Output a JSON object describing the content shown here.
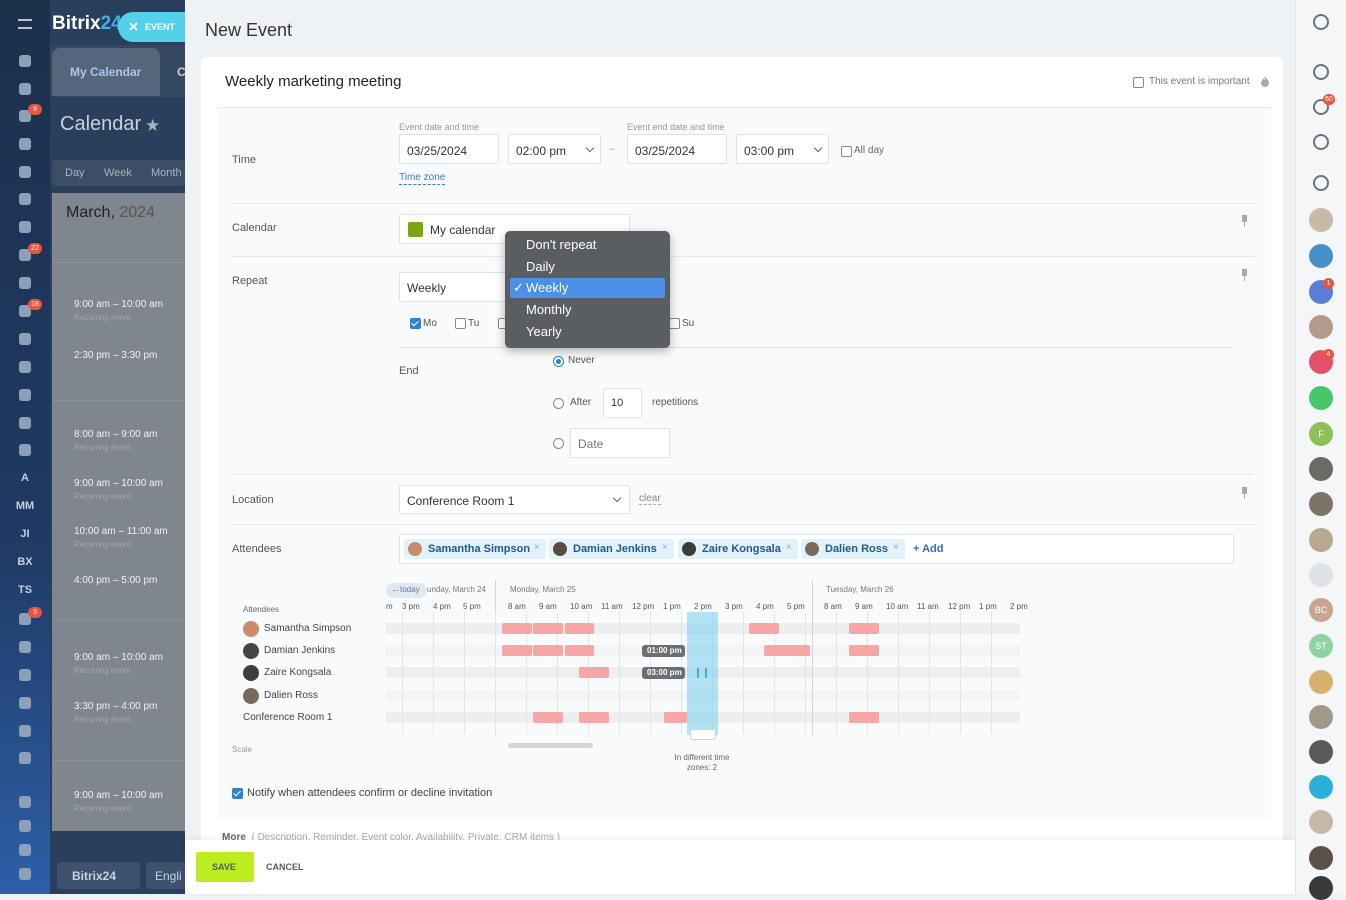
{
  "app": {
    "logo": "Bitrix",
    "logo_suffix": "24",
    "event_button": "EVENT"
  },
  "left_nav": {
    "badges": [
      "9",
      "22",
      "18",
      "3"
    ],
    "text_items": [
      "A",
      "MM",
      "JI",
      "BX",
      "TS"
    ],
    "footer_logo": "Bitrix24",
    "language": "Engli"
  },
  "background": {
    "tabs": [
      "My Calendar",
      "C"
    ],
    "title": "Calendar",
    "views": [
      "Day",
      "Week",
      "Month"
    ],
    "month": "March,",
    "year": "2024",
    "events": [
      {
        "time": "9:00 am – 10:00 am",
        "note": "Recurring event"
      },
      {
        "time": "2:30 pm – 3:30 pm"
      },
      {
        "time": "8:00 am – 9:00 am",
        "note": "Recurring event"
      },
      {
        "time": "9:00 am – 10:00 am",
        "note": "Recurring event"
      },
      {
        "time": "10:00 am – 11:00 am",
        "note": "Recurring event"
      },
      {
        "time": "4:00 pm – 5:00 pm"
      },
      {
        "time": "9:00 am – 10:00 am",
        "note": "Recurring event"
      },
      {
        "time": "3:30 pm – 4:00 pm",
        "note": "Recurring event"
      },
      {
        "time": "9:00 am – 10:00 am",
        "note": "Recurring event"
      }
    ]
  },
  "right_bar": {
    "badges": [
      "60",
      "1",
      "4"
    ],
    "initials": [
      "F",
      "BC",
      "ST"
    ]
  },
  "form": {
    "page_title": "New Event",
    "event_name": "Weekly marketing meeting",
    "important": "This event is important",
    "time": {
      "label": "Time",
      "start_caption": "Event date and time",
      "start_date": "03/25/2024",
      "start_time": "02:00 pm",
      "separator": "–",
      "end_caption": "Event end date and time",
      "end_date": "03/25/2024",
      "end_time": "03:00 pm",
      "all_day": "All day",
      "time_zone": "Time zone"
    },
    "calendar": {
      "label": "Calendar",
      "value": "My calendar"
    },
    "repeat": {
      "label": "Repeat",
      "value": "Weekly",
      "options": [
        {
          "label": "Don't repeat",
          "checked": false
        },
        {
          "label": "Daily",
          "checked": false
        },
        {
          "label": "Weekly",
          "checked": true
        },
        {
          "label": "Monthly",
          "checked": false
        },
        {
          "label": "Yearly",
          "checked": false
        }
      ],
      "days": [
        {
          "label": "Mo",
          "checked": true
        },
        {
          "label": "Tu",
          "checked": false
        },
        {
          "label": "Su",
          "checked": false
        }
      ],
      "end_label": "End",
      "never": "Never",
      "after": "After",
      "count": "10",
      "repetitions": "repetitions",
      "date_placeholder": "Date"
    },
    "location": {
      "label": "Location",
      "value": "Conference Room 1",
      "clear": "clear"
    },
    "attendees": {
      "label": "Attendees",
      "people": [
        "Samantha Simpson",
        "Damian Jenkins",
        "Zaire Kongsala",
        "Dalien Ross"
      ],
      "add": "+ Add"
    },
    "planner": {
      "today": "today",
      "column_label": "Attendees",
      "days": [
        "unday, March 24",
        "Monday, March 25",
        "Tuesday, March 26"
      ],
      "hours": [
        [
          "m",
          "3 pm",
          "4 pm",
          "5 pm"
        ],
        [
          "8 am",
          "9 am",
          "10 am",
          "11 am",
          "12 pm",
          "1 pm",
          "2 pm",
          "3 pm",
          "4 pm",
          "5 pm"
        ],
        [
          "8 am",
          "9 am",
          "10 am",
          "11 am",
          "12 pm",
          "1 pm",
          "2 pm"
        ]
      ],
      "rows": [
        "Samantha Simpson",
        "Damian Jenkins",
        "Zaire Kongsala",
        "Dalien Ross",
        "Conference Room 1"
      ],
      "time_badges": [
        "01:00 pm",
        "03:00 pm"
      ],
      "scale": "Scale",
      "timezones": "In different time zones: 2"
    },
    "notify": "Notify when attendees confirm or decline invitation",
    "more": {
      "label": "More",
      "items": "( Description, Reminder, Event color, Availability, Private, CRM items )"
    },
    "buttons": {
      "save": "SAVE",
      "cancel": "CANCEL"
    }
  }
}
